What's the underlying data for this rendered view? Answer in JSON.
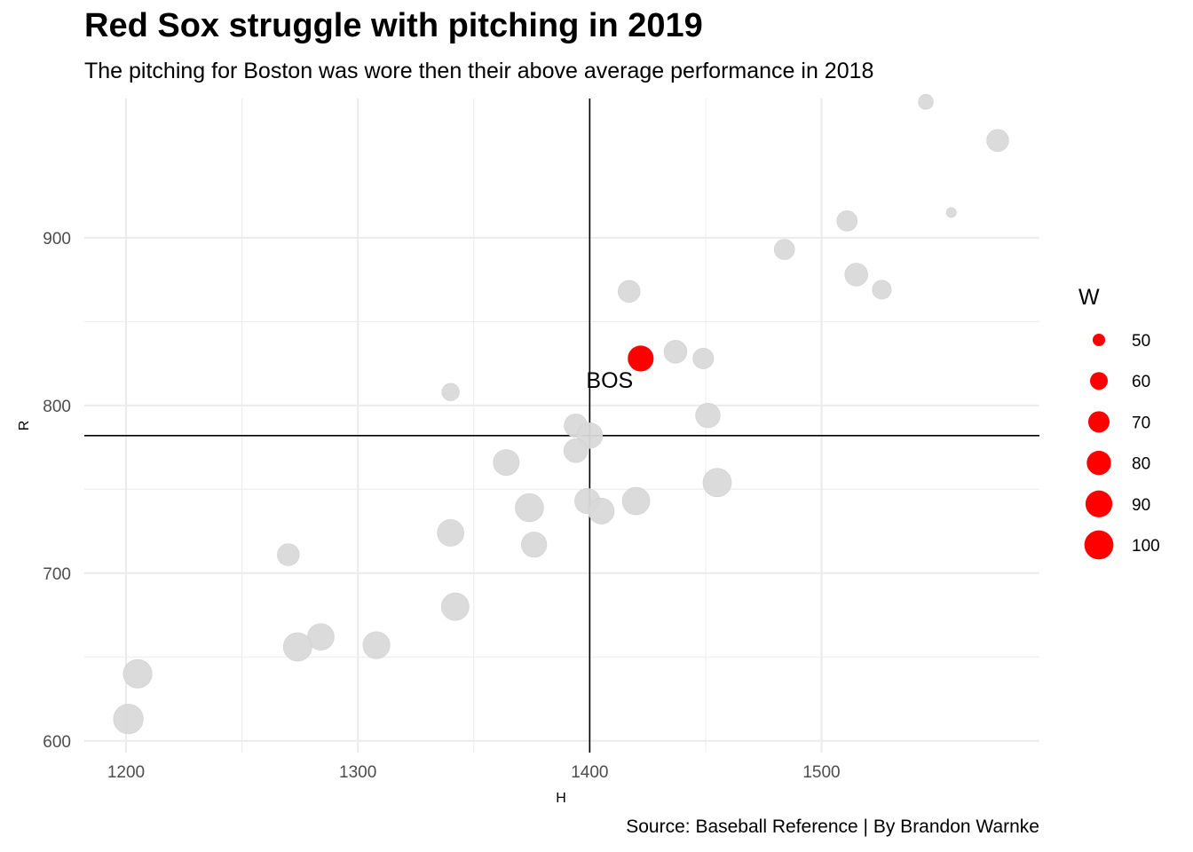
{
  "chart_data": {
    "type": "scatter",
    "title": "Red Sox struggle with pitching in 2019",
    "subtitle": "The pitching for Boston was wore then their above average performance in 2018",
    "caption": "Source: Baseball Reference | By Brandon Warnke",
    "xlabel": "H",
    "ylabel": "R",
    "xlim": [
      1182,
      1594
    ],
    "ylim": [
      593,
      983
    ],
    "xticks": [
      1200,
      1300,
      1400,
      1500
    ],
    "yticks": [
      600,
      700,
      800,
      900
    ],
    "grid": true,
    "reference_lines": {
      "x": 1400,
      "y": 782
    },
    "size_legend": {
      "title": "W",
      "breaks": [
        50,
        60,
        70,
        80,
        90,
        100
      ],
      "position": "right"
    },
    "colors": {
      "highlight": "#ff0000",
      "other": "#d9d9d9",
      "grid": "#ebebeb",
      "refline": "#000000"
    },
    "highlight_label": "BOS",
    "points": [
      {
        "team": "BOS",
        "h": 1422,
        "r": 828,
        "w": 84,
        "highlight": true
      },
      {
        "team": "",
        "h": 1545,
        "r": 981,
        "w": 54
      },
      {
        "team": "",
        "h": 1576,
        "r": 958,
        "w": 72
      },
      {
        "team": "",
        "h": 1556,
        "r": 915,
        "w": 47
      },
      {
        "team": "",
        "h": 1511,
        "r": 910,
        "w": 67
      },
      {
        "team": "",
        "h": 1484,
        "r": 893,
        "w": 67
      },
      {
        "team": "",
        "h": 1515,
        "r": 878,
        "w": 75
      },
      {
        "team": "",
        "h": 1526,
        "r": 869,
        "w": 63
      },
      {
        "team": "",
        "h": 1417,
        "r": 868,
        "w": 72
      },
      {
        "team": "",
        "h": 1437,
        "r": 832,
        "w": 75
      },
      {
        "team": "",
        "h": 1449,
        "r": 828,
        "w": 68
      },
      {
        "team": "",
        "h": 1340,
        "r": 808,
        "w": 59
      },
      {
        "team": "",
        "h": 1451,
        "r": 794,
        "w": 81
      },
      {
        "team": "",
        "h": 1394,
        "r": 788,
        "w": 76
      },
      {
        "team": "",
        "h": 1400,
        "r": 782,
        "w": 85
      },
      {
        "team": "",
        "h": 1394,
        "r": 773,
        "w": 78
      },
      {
        "team": "",
        "h": 1364,
        "r": 766,
        "w": 86
      },
      {
        "team": "",
        "h": 1455,
        "r": 754,
        "w": 97
      },
      {
        "team": "",
        "h": 1420,
        "r": 743,
        "w": 93
      },
      {
        "team": "",
        "h": 1399,
        "r": 743,
        "w": 84
      },
      {
        "team": "",
        "h": 1374,
        "r": 739,
        "w": 96
      },
      {
        "team": "",
        "h": 1405,
        "r": 737,
        "w": 86
      },
      {
        "team": "",
        "h": 1340,
        "r": 724,
        "w": 89
      },
      {
        "team": "",
        "h": 1376,
        "r": 717,
        "w": 84
      },
      {
        "team": "",
        "h": 1270,
        "r": 711,
        "w": 72
      },
      {
        "team": "",
        "h": 1342,
        "r": 680,
        "w": 93
      },
      {
        "team": "",
        "h": 1284,
        "r": 662,
        "w": 89
      },
      {
        "team": "",
        "h": 1308,
        "r": 657,
        "w": 91
      },
      {
        "team": "",
        "h": 1274,
        "r": 656,
        "w": 97
      },
      {
        "team": "",
        "h": 1205,
        "r": 640,
        "w": 98
      },
      {
        "team": "",
        "h": 1201,
        "r": 613,
        "w": 103
      }
    ]
  }
}
